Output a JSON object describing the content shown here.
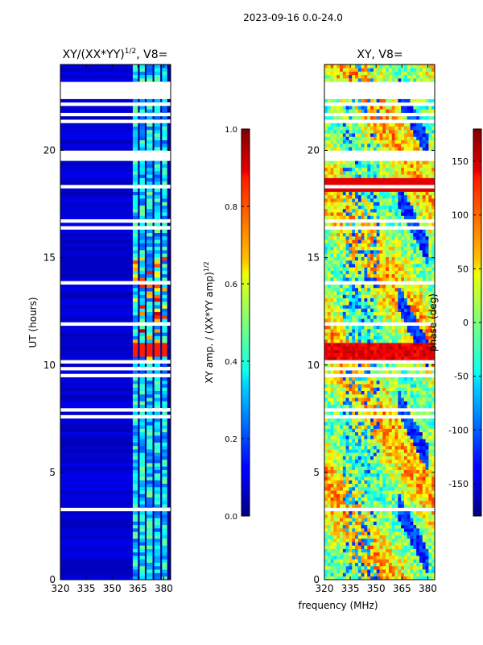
{
  "suptitle": "2023-09-16 0.0-24.0",
  "chart_data": [
    {
      "type": "heatmap",
      "title": "XY/(XX*YY)",
      "title_sup": "1/2",
      "title_suffix": ", V8=",
      "ylabel": "UT (hours)",
      "xlabel": "",
      "x_ticks": [
        320,
        335,
        350,
        365,
        380
      ],
      "y_ticks": [
        0,
        5,
        10,
        15,
        20
      ],
      "xlim": [
        320,
        384
      ],
      "ylim": [
        0,
        24
      ],
      "colormap": "jet",
      "colorbar": {
        "label": "XY amp. / (XX*YY amp)",
        "label_sup": "1/2",
        "ticks": [
          "0.0",
          "0.2",
          "0.4",
          "0.6",
          "0.8",
          "1.0"
        ],
        "range": [
          0,
          1
        ]
      }
    },
    {
      "type": "heatmap",
      "title": "XY, V8=",
      "ylabel": "",
      "xlabel": "frequency (MHz)",
      "x_ticks": [
        320,
        335,
        350,
        365,
        380
      ],
      "y_ticks": [
        0,
        5,
        10,
        15,
        20
      ],
      "xlim": [
        320,
        384
      ],
      "ylim": [
        0,
        24
      ],
      "colormap": "jet",
      "colorbar": {
        "label": "phase (deg)",
        "ticks": [
          "-150",
          "-100",
          "-50",
          "0",
          "50",
          "100",
          "150"
        ],
        "range": [
          -180,
          180
        ]
      }
    }
  ]
}
